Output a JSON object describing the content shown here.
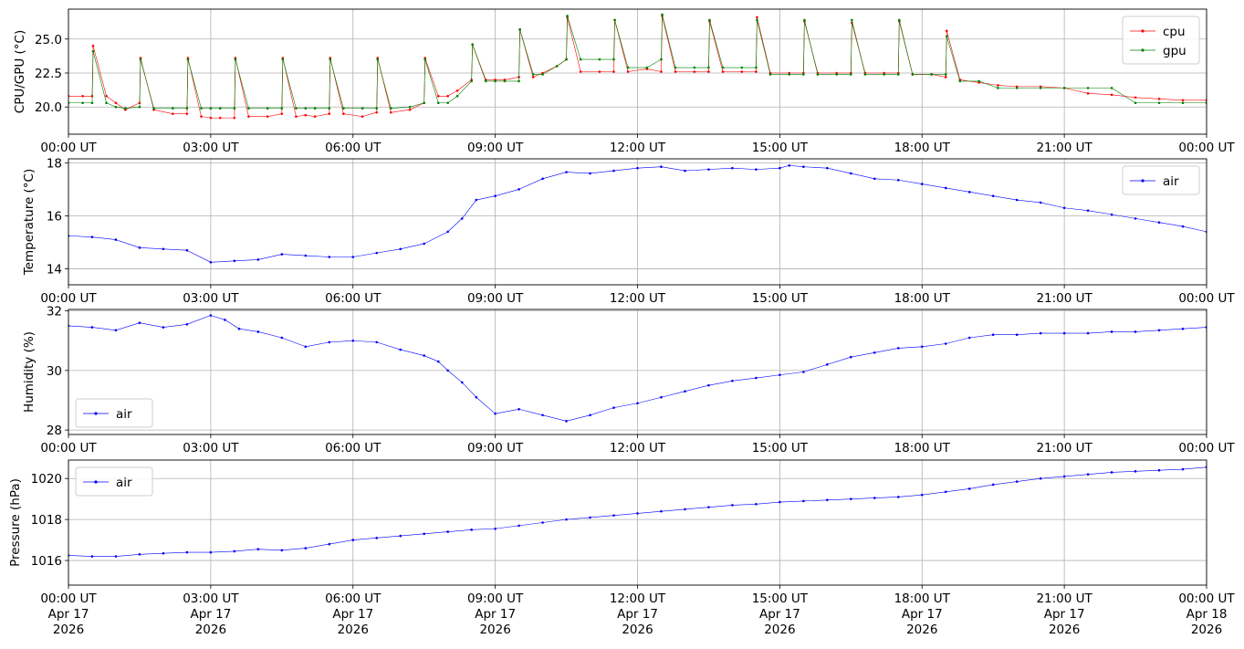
{
  "chart_data": [
    {
      "type": "line",
      "ylabel": "CPU/GPU (°C)",
      "ylim": [
        18.0,
        27.2
      ],
      "yticks": [
        20.0,
        22.5,
        25.0
      ],
      "ytick_labels": [
        "20.0",
        "22.5",
        "25.0"
      ],
      "xlim": [
        0,
        24
      ],
      "xticks": [
        0,
        3,
        6,
        9,
        12,
        15,
        18,
        21,
        24
      ],
      "xtick_labels": [
        "00:00 UT",
        "03:00 UT",
        "06:00 UT",
        "09:00 UT",
        "12:00 UT",
        "15:00 UT",
        "18:00 UT",
        "21:00 UT",
        "00:00 UT"
      ],
      "grid": true,
      "legend_position": "top-right",
      "series": [
        {
          "name": "cpu",
          "color": "#ff0000",
          "x": [
            0,
            0.3,
            0.5,
            0.52,
            0.8,
            1.0,
            1.2,
            1.5,
            1.52,
            1.8,
            2.2,
            2.5,
            2.52,
            2.8,
            3.0,
            3.2,
            3.5,
            3.52,
            3.8,
            4.2,
            4.5,
            4.52,
            4.8,
            5.0,
            5.2,
            5.5,
            5.52,
            5.8,
            6.2,
            6.5,
            6.52,
            6.8,
            7.2,
            7.5,
            7.52,
            7.8,
            8.0,
            8.2,
            8.5,
            8.52,
            8.8,
            9.0,
            9.2,
            9.5,
            9.52,
            9.8,
            10.0,
            10.3,
            10.5,
            10.52,
            10.8,
            11.2,
            11.5,
            11.52,
            11.8,
            12.2,
            12.5,
            12.52,
            12.8,
            13.2,
            13.5,
            13.52,
            13.8,
            14.2,
            14.5,
            14.52,
            14.8,
            15.2,
            15.5,
            15.52,
            15.8,
            16.2,
            16.5,
            16.52,
            16.8,
            17.2,
            17.5,
            17.52,
            17.8,
            18.2,
            18.5,
            18.52,
            18.8,
            19.2,
            19.6,
            20.0,
            20.5,
            21.0,
            21.5,
            22.0,
            22.5,
            23.0,
            23.5,
            24.0
          ],
          "y": [
            20.8,
            20.8,
            20.8,
            24.5,
            20.8,
            20.3,
            19.8,
            20.3,
            23.6,
            19.8,
            19.5,
            19.5,
            23.6,
            19.3,
            19.2,
            19.2,
            19.2,
            23.6,
            19.3,
            19.3,
            19.5,
            23.6,
            19.3,
            19.4,
            19.3,
            19.5,
            23.6,
            19.5,
            19.3,
            19.6,
            23.6,
            19.6,
            19.8,
            20.3,
            23.6,
            20.8,
            20.8,
            21.2,
            22.0,
            24.6,
            22.0,
            22.0,
            22.0,
            22.2,
            25.7,
            22.2,
            22.5,
            23.0,
            23.5,
            26.6,
            22.6,
            22.6,
            22.6,
            26.4,
            22.6,
            22.8,
            22.6,
            26.7,
            22.6,
            22.6,
            22.6,
            26.3,
            22.6,
            22.6,
            22.6,
            26.6,
            22.5,
            22.5,
            22.5,
            26.3,
            22.5,
            22.5,
            22.5,
            26.2,
            22.5,
            22.5,
            22.5,
            26.3,
            22.4,
            22.4,
            22.2,
            25.6,
            22.0,
            21.8,
            21.6,
            21.5,
            21.5,
            21.4,
            21.0,
            20.9,
            20.7,
            20.6,
            20.5,
            20.5
          ]
        },
        {
          "name": "gpu",
          "color": "#008000",
          "x": [
            0,
            0.3,
            0.5,
            0.52,
            0.8,
            1.0,
            1.2,
            1.5,
            1.52,
            1.8,
            2.2,
            2.5,
            2.52,
            2.8,
            3.0,
            3.2,
            3.5,
            3.52,
            3.8,
            4.2,
            4.5,
            4.52,
            4.8,
            5.0,
            5.2,
            5.5,
            5.52,
            5.8,
            6.2,
            6.5,
            6.52,
            6.8,
            7.2,
            7.5,
            7.52,
            7.8,
            8.0,
            8.2,
            8.5,
            8.52,
            8.8,
            9.0,
            9.2,
            9.5,
            9.52,
            9.8,
            10.0,
            10.3,
            10.5,
            10.52,
            10.8,
            11.2,
            11.5,
            11.52,
            11.8,
            12.2,
            12.5,
            12.52,
            12.8,
            13.2,
            13.5,
            13.52,
            13.8,
            14.2,
            14.5,
            14.52,
            14.8,
            15.2,
            15.5,
            15.52,
            15.8,
            16.2,
            16.5,
            16.52,
            16.8,
            17.2,
            17.5,
            17.52,
            17.8,
            18.2,
            18.5,
            18.52,
            18.8,
            19.2,
            19.6,
            20.0,
            20.5,
            21.0,
            21.5,
            22.0,
            22.5,
            23.0,
            23.5,
            24.0
          ],
          "y": [
            20.3,
            20.3,
            20.3,
            24.1,
            20.3,
            20.0,
            19.9,
            20.0,
            23.5,
            19.9,
            19.9,
            19.9,
            23.5,
            19.9,
            19.9,
            19.9,
            19.9,
            23.5,
            19.9,
            19.9,
            19.9,
            23.5,
            19.9,
            19.9,
            19.9,
            19.9,
            23.5,
            19.9,
            19.9,
            19.9,
            23.5,
            19.9,
            20.0,
            20.3,
            23.5,
            20.3,
            20.3,
            20.8,
            21.9,
            24.6,
            21.9,
            21.9,
            21.9,
            21.9,
            25.7,
            22.4,
            22.4,
            23.0,
            23.5,
            26.7,
            23.5,
            23.5,
            23.5,
            26.4,
            22.9,
            22.9,
            23.5,
            26.8,
            22.9,
            22.9,
            22.9,
            26.4,
            22.9,
            22.9,
            22.9,
            26.4,
            22.4,
            22.4,
            22.4,
            26.4,
            22.4,
            22.4,
            22.4,
            26.4,
            22.4,
            22.4,
            22.4,
            26.4,
            22.4,
            22.4,
            22.4,
            25.2,
            21.9,
            21.9,
            21.4,
            21.4,
            21.4,
            21.4,
            21.4,
            21.4,
            20.3,
            20.3,
            20.3,
            20.3
          ]
        }
      ]
    },
    {
      "type": "line",
      "ylabel": "Temperature (°C)",
      "ylim": [
        13.4,
        18.15
      ],
      "yticks": [
        14,
        16,
        18
      ],
      "ytick_labels": [
        "14",
        "16",
        "18"
      ],
      "xlim": [
        0,
        24
      ],
      "xticks": [
        0,
        3,
        6,
        9,
        12,
        15,
        18,
        21,
        24
      ],
      "xtick_labels": [
        "00:00 UT",
        "03:00 UT",
        "06:00 UT",
        "09:00 UT",
        "12:00 UT",
        "15:00 UT",
        "18:00 UT",
        "21:00 UT",
        "00:00 UT"
      ],
      "grid": true,
      "legend_position": "top-right",
      "series": [
        {
          "name": "air",
          "color": "#0000ff",
          "x": [
            0,
            0.5,
            1.0,
            1.5,
            2.0,
            2.5,
            3.0,
            3.5,
            4.0,
            4.5,
            5.0,
            5.5,
            6.0,
            6.5,
            7.0,
            7.5,
            8.0,
            8.3,
            8.6,
            9.0,
            9.5,
            10.0,
            10.5,
            11.0,
            11.5,
            12.0,
            12.5,
            13.0,
            13.5,
            14.0,
            14.5,
            15.0,
            15.2,
            15.5,
            16.0,
            16.5,
            17.0,
            17.5,
            18.0,
            18.5,
            19.0,
            19.5,
            20.0,
            20.5,
            21.0,
            21.5,
            22.0,
            22.5,
            23.0,
            23.5,
            24.0
          ],
          "y": [
            15.25,
            15.2,
            15.1,
            14.8,
            14.75,
            14.7,
            14.25,
            14.3,
            14.35,
            14.55,
            14.5,
            14.45,
            14.45,
            14.6,
            14.75,
            14.95,
            15.4,
            15.9,
            16.6,
            16.75,
            17.0,
            17.4,
            17.65,
            17.6,
            17.7,
            17.8,
            17.85,
            17.7,
            17.75,
            17.8,
            17.75,
            17.8,
            17.9,
            17.85,
            17.8,
            17.6,
            17.4,
            17.35,
            17.2,
            17.05,
            16.9,
            16.75,
            16.6,
            16.5,
            16.3,
            16.2,
            16.05,
            15.9,
            15.75,
            15.6,
            15.4
          ]
        }
      ]
    },
    {
      "type": "line",
      "ylabel": "Humidity (%)",
      "ylim": [
        27.85,
        32.05
      ],
      "yticks": [
        28,
        30,
        32
      ],
      "ytick_labels": [
        "28",
        "30",
        "32"
      ],
      "xlim": [
        0,
        24
      ],
      "xticks": [
        0,
        3,
        6,
        9,
        12,
        15,
        18,
        21,
        24
      ],
      "xtick_labels": [
        "00:00 UT",
        "03:00 UT",
        "06:00 UT",
        "09:00 UT",
        "12:00 UT",
        "15:00 UT",
        "18:00 UT",
        "21:00 UT",
        "00:00 UT"
      ],
      "grid": true,
      "legend_position": "bottom-left",
      "series": [
        {
          "name": "air",
          "color": "#0000ff",
          "x": [
            0,
            0.5,
            1.0,
            1.5,
            2.0,
            2.5,
            3.0,
            3.3,
            3.6,
            4.0,
            4.5,
            5.0,
            5.5,
            6.0,
            6.5,
            7.0,
            7.5,
            7.8,
            8.0,
            8.3,
            8.6,
            9.0,
            9.5,
            10.0,
            10.5,
            11.0,
            11.5,
            12.0,
            12.5,
            13.0,
            13.5,
            14.0,
            14.5,
            15.0,
            15.5,
            16.0,
            16.5,
            17.0,
            17.5,
            18.0,
            18.5,
            19.0,
            19.5,
            20.0,
            20.5,
            21.0,
            21.5,
            22.0,
            22.5,
            23.0,
            23.5,
            24.0
          ],
          "y": [
            31.5,
            31.45,
            31.35,
            31.6,
            31.45,
            31.55,
            31.85,
            31.7,
            31.4,
            31.3,
            31.1,
            30.8,
            30.95,
            31.0,
            30.95,
            30.7,
            30.5,
            30.3,
            30.0,
            29.6,
            29.1,
            28.55,
            28.7,
            28.5,
            28.3,
            28.5,
            28.75,
            28.9,
            29.1,
            29.3,
            29.5,
            29.65,
            29.75,
            29.85,
            29.95,
            30.2,
            30.45,
            30.6,
            30.75,
            30.8,
            30.9,
            31.1,
            31.2,
            31.2,
            31.25,
            31.25,
            31.25,
            31.3,
            31.3,
            31.35,
            31.4,
            31.45
          ]
        }
      ]
    },
    {
      "type": "line",
      "ylabel": "Pressure (hPa)",
      "ylim": [
        1014.8,
        1020.9
      ],
      "yticks": [
        1016,
        1018,
        1020
      ],
      "ytick_labels": [
        "1016",
        "1018",
        "1020"
      ],
      "xlim": [
        0,
        24
      ],
      "xticks": [
        0,
        3,
        6,
        9,
        12,
        15,
        18,
        21,
        24
      ],
      "xtick_labels": [
        "00:00 UT\nApr 17\n2026",
        "03:00 UT\nApr 17\n2026",
        "06:00 UT\nApr 17\n2026",
        "09:00 UT\nApr 17\n2026",
        "12:00 UT\nApr 17\n2026",
        "15:00 UT\nApr 17\n2026",
        "18:00 UT\nApr 17\n2026",
        "21:00 UT\nApr 17\n2026",
        "00:00 UT\nApr 18\n2026"
      ],
      "grid": true,
      "legend_position": "top-left",
      "series": [
        {
          "name": "air",
          "color": "#0000ff",
          "x": [
            0,
            0.5,
            1.0,
            1.5,
            2.0,
            2.5,
            3.0,
            3.5,
            4.0,
            4.5,
            5.0,
            5.5,
            6.0,
            6.5,
            7.0,
            7.5,
            8.0,
            8.5,
            9.0,
            9.5,
            10.0,
            10.5,
            11.0,
            11.5,
            12.0,
            12.5,
            13.0,
            13.5,
            14.0,
            14.5,
            15.0,
            15.5,
            16.0,
            16.5,
            17.0,
            17.5,
            18.0,
            18.5,
            19.0,
            19.5,
            20.0,
            20.5,
            21.0,
            21.5,
            22.0,
            22.5,
            23.0,
            23.5,
            24.0
          ],
          "y": [
            1016.25,
            1016.2,
            1016.2,
            1016.3,
            1016.35,
            1016.4,
            1016.4,
            1016.45,
            1016.55,
            1016.5,
            1016.6,
            1016.8,
            1017.0,
            1017.1,
            1017.2,
            1017.3,
            1017.4,
            1017.5,
            1017.55,
            1017.7,
            1017.85,
            1018.0,
            1018.1,
            1018.2,
            1018.3,
            1018.4,
            1018.5,
            1018.6,
            1018.7,
            1018.75,
            1018.85,
            1018.9,
            1018.95,
            1019.0,
            1019.05,
            1019.1,
            1019.2,
            1019.35,
            1019.5,
            1019.7,
            1019.85,
            1020.0,
            1020.1,
            1020.2,
            1020.3,
            1020.35,
            1020.4,
            1020.45,
            1020.55
          ]
        }
      ]
    }
  ]
}
